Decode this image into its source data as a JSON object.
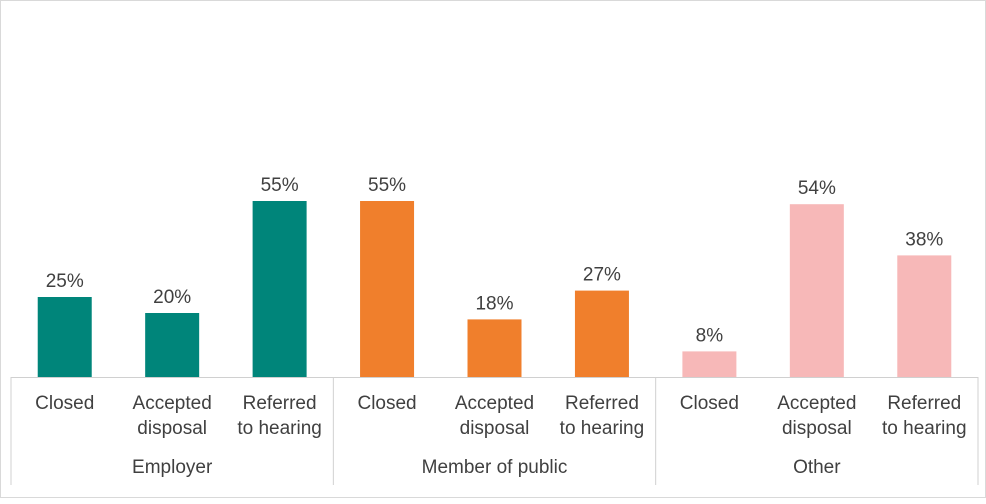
{
  "chart_data": {
    "type": "bar",
    "groups": [
      {
        "name": "Employer",
        "color": "#00857a",
        "categories": [
          [
            "Closed"
          ],
          [
            "Accepted",
            "disposal"
          ],
          [
            "Referred",
            "to hearing"
          ]
        ],
        "values": [
          25,
          20,
          55
        ],
        "labels": [
          "25%",
          "20%",
          "55%"
        ]
      },
      {
        "name": "Member of public",
        "color": "#f07f2c",
        "categories": [
          [
            "Closed"
          ],
          [
            "Accepted",
            "disposal"
          ],
          [
            "Referred",
            "to hearing"
          ]
        ],
        "values": [
          55,
          18,
          27
        ],
        "labels": [
          "55%",
          "18%",
          "27%"
        ]
      },
      {
        "name": "Other",
        "color": "#f7b8b8",
        "categories": [
          [
            "Closed"
          ],
          [
            "Accepted",
            "disposal"
          ],
          [
            "Referred",
            "to hearing"
          ]
        ],
        "values": [
          8,
          54,
          38
        ],
        "labels": [
          "8%",
          "54%",
          "38%"
        ]
      }
    ],
    "ylim": [
      0,
      100
    ],
    "unit": "%",
    "grid": false,
    "legend": "none"
  }
}
